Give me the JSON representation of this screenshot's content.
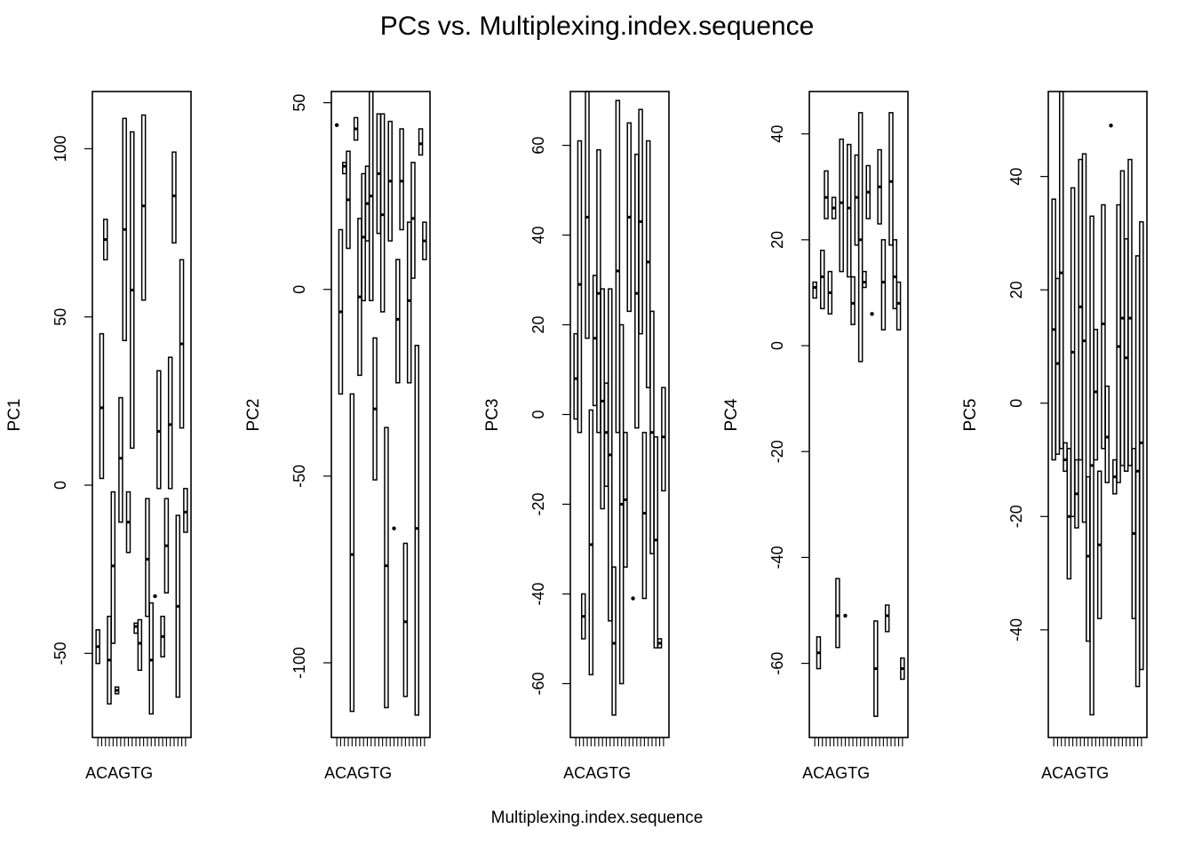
{
  "title": "PCs vs. Multiplexing.index.sequence",
  "xlabel": "Multiplexing.index.sequence",
  "colors": {
    "stroke": "#000000",
    "background": "#ffffff"
  },
  "chart_data": [
    {
      "type": "boxplot",
      "ylabel": "PC1",
      "first_category_label": "ACAGTG",
      "ylim": [
        -75,
        117
      ],
      "yticks": [
        -50,
        0,
        50,
        100
      ],
      "boxes": [
        {
          "low": -53,
          "q1": -53,
          "median": -48,
          "q3": -43,
          "high": -43
        },
        {
          "low": 2,
          "q1": 2,
          "median": 23,
          "q3": 45,
          "high": 45
        },
        {
          "low": 67,
          "q1": 67,
          "median": 73,
          "q3": 79,
          "high": 79
        },
        {
          "low": -65,
          "q1": -65,
          "median": -52,
          "q3": -39,
          "high": -39
        },
        {
          "low": -47,
          "q1": -47,
          "median": -24,
          "q3": -2,
          "high": -2
        },
        {
          "low": -62,
          "q1": -62,
          "median": -61,
          "q3": -60,
          "high": -60
        },
        {
          "low": -11,
          "q1": -11,
          "median": 8,
          "q3": 26,
          "high": 26
        },
        {
          "low": 43,
          "q1": 43,
          "median": 76,
          "q3": 109,
          "high": 109
        },
        {
          "low": -20,
          "q1": -20,
          "median": -11,
          "q3": -2,
          "high": -2
        },
        {
          "low": 11,
          "q1": 11,
          "median": 58,
          "q3": 105,
          "high": 105
        },
        {
          "low": -44,
          "q1": -44,
          "median": -42,
          "q3": -41,
          "high": -41
        },
        {
          "low": -55,
          "q1": -55,
          "median": -47,
          "q3": -40,
          "high": -40
        },
        {
          "low": 55,
          "q1": 55,
          "median": 83,
          "q3": 110,
          "high": 110
        },
        {
          "low": -39,
          "q1": -39,
          "median": -22,
          "q3": -4,
          "high": -4
        },
        {
          "low": -68,
          "q1": -68,
          "median": -52,
          "q3": -35,
          "high": -35
        },
        {
          "low": -33,
          "q1": -33,
          "median": -33,
          "q3": -33,
          "high": -33
        },
        {
          "low": -1,
          "q1": -1,
          "median": 16,
          "q3": 34,
          "high": 34
        },
        {
          "low": -51,
          "q1": -51,
          "median": -45,
          "q3": -39,
          "high": -39
        },
        {
          "low": -32,
          "q1": -32,
          "median": -18,
          "q3": -4,
          "high": -4
        },
        {
          "low": -1,
          "q1": -1,
          "median": 18,
          "q3": 38,
          "high": 38
        },
        {
          "low": 72,
          "q1": 72,
          "median": 86,
          "q3": 99,
          "high": 99
        },
        {
          "low": -63,
          "q1": -63,
          "median": -36,
          "q3": -9,
          "high": -9
        },
        {
          "low": 17,
          "q1": 17,
          "median": 42,
          "q3": 67,
          "high": 67
        },
        {
          "low": -14,
          "q1": -14,
          "median": -8,
          "q3": -1,
          "high": -1
        }
      ]
    },
    {
      "type": "boxplot",
      "ylabel": "PC2",
      "first_category_label": "ACAGTG",
      "ylim": [
        -120,
        53
      ],
      "yticks": [
        -100,
        -50,
        0,
        50
      ],
      "boxes": [
        {
          "low": 44,
          "q1": 44,
          "median": 44,
          "q3": 44,
          "high": 44
        },
        {
          "low": -28,
          "q1": -28,
          "median": -6,
          "q3": 16,
          "high": 16
        },
        {
          "low": 31,
          "q1": 31,
          "median": 33,
          "q3": 34,
          "high": 34
        },
        {
          "low": 11,
          "q1": 11,
          "median": 24,
          "q3": 37,
          "high": 37
        },
        {
          "low": -113,
          "q1": -113,
          "median": -71,
          "q3": -28,
          "high": -28
        },
        {
          "low": 40,
          "q1": 40,
          "median": 43,
          "q3": 46,
          "high": 46
        },
        {
          "low": -23,
          "q1": -23,
          "median": -2,
          "q3": 19,
          "high": 19
        },
        {
          "low": -3,
          "q1": -3,
          "median": 14,
          "q3": 31,
          "high": 31
        },
        {
          "low": 13,
          "q1": 13,
          "median": 23,
          "q3": 33,
          "high": 33
        },
        {
          "low": -3,
          "q1": -3,
          "median": 25,
          "q3": 53,
          "high": 53
        },
        {
          "low": -51,
          "q1": -51,
          "median": -32,
          "q3": -13,
          "high": -13
        },
        {
          "low": 15,
          "q1": 15,
          "median": 31,
          "q3": 47,
          "high": 47
        },
        {
          "low": -6,
          "q1": -6,
          "median": 20,
          "q3": 47,
          "high": 47
        },
        {
          "low": -112,
          "q1": -112,
          "median": -74,
          "q3": -37,
          "high": -37
        },
        {
          "low": 13,
          "q1": 13,
          "median": 29,
          "q3": 45,
          "high": 45
        },
        {
          "low": -64,
          "q1": -64,
          "median": -64,
          "q3": -64,
          "high": -64
        },
        {
          "low": -25,
          "q1": -25,
          "median": -8,
          "q3": 8,
          "high": 8
        },
        {
          "low": 16,
          "q1": 16,
          "median": 29,
          "q3": 43,
          "high": 43
        },
        {
          "low": -109,
          "q1": -109,
          "median": -89,
          "q3": -68,
          "high": -68
        },
        {
          "low": -25,
          "q1": -25,
          "median": -3,
          "q3": 18,
          "high": 18
        },
        {
          "low": 3,
          "q1": 3,
          "median": 19,
          "q3": 34,
          "high": 34
        },
        {
          "low": -114,
          "q1": -114,
          "median": -64,
          "q3": -15,
          "high": -15
        },
        {
          "low": 36,
          "q1": 36,
          "median": 39,
          "q3": 43,
          "high": 43
        },
        {
          "low": 8,
          "q1": 8,
          "median": 13,
          "q3": 18,
          "high": 18
        }
      ]
    },
    {
      "type": "boxplot",
      "ylabel": "PC3",
      "first_category_label": "ACAGTG",
      "ylim": [
        -72,
        72
      ],
      "yticks": [
        -60,
        -40,
        -20,
        0,
        20,
        40,
        60
      ],
      "boxes": [
        {
          "low": -1,
          "q1": -1,
          "median": 8,
          "q3": 18,
          "high": 18
        },
        {
          "low": -4,
          "q1": -4,
          "median": 29,
          "q3": 61,
          "high": 61
        },
        {
          "low": -50,
          "q1": -50,
          "median": -45,
          "q3": -40,
          "high": -40
        },
        {
          "low": 17,
          "q1": 17,
          "median": 44,
          "q3": 72,
          "high": 72
        },
        {
          "low": -58,
          "q1": -58,
          "median": -29,
          "q3": 1,
          "high": 1
        },
        {
          "low": 2,
          "q1": 2,
          "median": 17,
          "q3": 31,
          "high": 31
        },
        {
          "low": -4,
          "q1": -4,
          "median": 27,
          "q3": 59,
          "high": 59
        },
        {
          "low": -21,
          "q1": -21,
          "median": 3,
          "q3": 28,
          "high": 28
        },
        {
          "low": -16,
          "q1": -16,
          "median": -4,
          "q3": 7,
          "high": 7
        },
        {
          "low": -46,
          "q1": -46,
          "median": -9,
          "q3": 28,
          "high": 28
        },
        {
          "low": -67,
          "q1": -67,
          "median": -51,
          "q3": -34,
          "high": -34
        },
        {
          "low": -4,
          "q1": -4,
          "median": 32,
          "q3": 70,
          "high": 70
        },
        {
          "low": -60,
          "q1": -60,
          "median": -20,
          "q3": 20,
          "high": 20
        },
        {
          "low": -34,
          "q1": -34,
          "median": -19,
          "q3": -4,
          "high": -4
        },
        {
          "low": 23,
          "q1": 23,
          "median": 44,
          "q3": 65,
          "high": 65
        },
        {
          "low": -41,
          "q1": -41,
          "median": -41,
          "q3": -41,
          "high": -41
        },
        {
          "low": -3,
          "q1": -3,
          "median": 27,
          "q3": 58,
          "high": 58
        },
        {
          "low": 18,
          "q1": 18,
          "median": 43,
          "q3": 68,
          "high": 68
        },
        {
          "low": -41,
          "q1": -41,
          "median": -22,
          "q3": -4,
          "high": -4
        },
        {
          "low": 6,
          "q1": 6,
          "median": 34,
          "q3": 61,
          "high": 61
        },
        {
          "low": -31,
          "q1": -31,
          "median": -4,
          "q3": 23,
          "high": 23
        },
        {
          "low": -52,
          "q1": -52,
          "median": -28,
          "q3": -5,
          "high": -5
        },
        {
          "low": -52,
          "q1": -52,
          "median": -51,
          "q3": -50,
          "high": -50
        },
        {
          "low": -17,
          "q1": -17,
          "median": -5,
          "q3": 6,
          "high": 6
        }
      ]
    },
    {
      "type": "boxplot",
      "ylabel": "PC4",
      "first_category_label": "ACAGTG",
      "ylim": [
        -74,
        48
      ],
      "yticks": [
        -60,
        -40,
        -20,
        0,
        20,
        40
      ],
      "boxes": [
        {
          "low": 9,
          "q1": 9,
          "median": 11,
          "q3": 12,
          "high": 12
        },
        {
          "low": -61,
          "q1": -61,
          "median": -58,
          "q3": -55,
          "high": -55
        },
        {
          "low": 7,
          "q1": 7,
          "median": 13,
          "q3": 18,
          "high": 18
        },
        {
          "low": 24,
          "q1": 24,
          "median": 28,
          "q3": 33,
          "high": 33
        },
        {
          "low": 6,
          "q1": 6,
          "median": 10,
          "q3": 14,
          "high": 14
        },
        {
          "low": 24,
          "q1": 24,
          "median": 26,
          "q3": 28,
          "high": 28
        },
        {
          "low": -57,
          "q1": -57,
          "median": -51,
          "q3": -44,
          "high": -44
        },
        {
          "low": 14,
          "q1": 14,
          "median": 27,
          "q3": 39,
          "high": 39
        },
        {
          "low": -51,
          "q1": -51,
          "median": -51,
          "q3": -51,
          "high": -51
        },
        {
          "low": 13,
          "q1": 13,
          "median": 26,
          "q3": 38,
          "high": 38
        },
        {
          "low": 4,
          "q1": 4,
          "median": 8,
          "q3": 13,
          "high": 13
        },
        {
          "low": 19,
          "q1": 19,
          "median": 28,
          "q3": 36,
          "high": 36
        },
        {
          "low": -3,
          "q1": -3,
          "median": 20,
          "q3": 44,
          "high": 44
        },
        {
          "low": 11,
          "q1": 11,
          "median": 12,
          "q3": 14,
          "high": 14
        },
        {
          "low": 24,
          "q1": 24,
          "median": 29,
          "q3": 34,
          "high": 34
        },
        {
          "low": 6,
          "q1": 6,
          "median": 6,
          "q3": 6,
          "high": 6
        },
        {
          "low": -70,
          "q1": -70,
          "median": -61,
          "q3": -52,
          "high": -52
        },
        {
          "low": 23,
          "q1": 23,
          "median": 30,
          "q3": 37,
          "high": 37
        },
        {
          "low": 3,
          "q1": 3,
          "median": 12,
          "q3": 20,
          "high": 20
        },
        {
          "low": -54,
          "q1": -54,
          "median": -51,
          "q3": -49,
          "high": -49
        },
        {
          "low": 19,
          "q1": 19,
          "median": 31,
          "q3": 44,
          "high": 44
        },
        {
          "low": 7,
          "q1": 7,
          "median": 13,
          "q3": 20,
          "high": 20
        },
        {
          "low": 3,
          "q1": 3,
          "median": 8,
          "q3": 12,
          "high": 12
        },
        {
          "low": -63,
          "q1": -63,
          "median": -61,
          "q3": -59,
          "high": -59
        }
      ]
    },
    {
      "type": "boxplot",
      "ylabel": "PC5",
      "first_category_label": "ACAGTG",
      "ylim": [
        -59,
        55
      ],
      "yticks": [
        -40,
        -20,
        0,
        20,
        40
      ],
      "boxes": [
        {
          "low": -10,
          "q1": -10,
          "median": 13,
          "q3": 36,
          "high": 36
        },
        {
          "low": -9,
          "q1": -9,
          "median": 7,
          "q3": 22,
          "high": 22
        },
        {
          "low": -8,
          "q1": -8,
          "median": 23,
          "q3": 55,
          "high": 55
        },
        {
          "low": -12,
          "q1": -12,
          "median": -10,
          "q3": -7,
          "high": -7
        },
        {
          "low": -31,
          "q1": -31,
          "median": -20,
          "q3": -8,
          "high": -8
        },
        {
          "low": -20,
          "q1": -20,
          "median": 9,
          "q3": 38,
          "high": 38
        },
        {
          "low": -22,
          "q1": -22,
          "median": -16,
          "q3": -10,
          "high": -10
        },
        {
          "low": -10,
          "q1": -10,
          "median": 17,
          "q3": 43,
          "high": 43
        },
        {
          "low": -21,
          "q1": -21,
          "median": 11,
          "q3": 44,
          "high": 44
        },
        {
          "low": -42,
          "q1": -42,
          "median": -27,
          "q3": -13,
          "high": -13
        },
        {
          "low": -55,
          "q1": -55,
          "median": -11,
          "q3": 33,
          "high": 33
        },
        {
          "low": -10,
          "q1": -10,
          "median": 2,
          "q3": 13,
          "high": 13
        },
        {
          "low": -38,
          "q1": -38,
          "median": -25,
          "q3": -12,
          "high": -12
        },
        {
          "low": -8,
          "q1": -8,
          "median": 14,
          "q3": 35,
          "high": 35
        },
        {
          "low": -14,
          "q1": -14,
          "median": -6,
          "q3": 3,
          "high": 3
        },
        {
          "low": 49,
          "q1": 49,
          "median": 49,
          "q3": 49,
          "high": 49
        },
        {
          "low": -16,
          "q1": -16,
          "median": -13,
          "q3": -10,
          "high": -10
        },
        {
          "low": -14,
          "q1": -14,
          "median": 10,
          "q3": 35,
          "high": 35
        },
        {
          "low": -11,
          "q1": -11,
          "median": 15,
          "q3": 41,
          "high": 41
        },
        {
          "low": -12,
          "q1": -12,
          "median": 8,
          "q3": 29,
          "high": 29
        },
        {
          "low": -11,
          "q1": -11,
          "median": 15,
          "q3": 43,
          "high": 43
        },
        {
          "low": -38,
          "q1": -38,
          "median": -23,
          "q3": -8,
          "high": -8
        },
        {
          "low": -50,
          "q1": -50,
          "median": -12,
          "q3": 26,
          "high": 26
        },
        {
          "low": -47,
          "q1": -47,
          "median": -7,
          "q3": 32,
          "high": 32
        }
      ]
    }
  ]
}
